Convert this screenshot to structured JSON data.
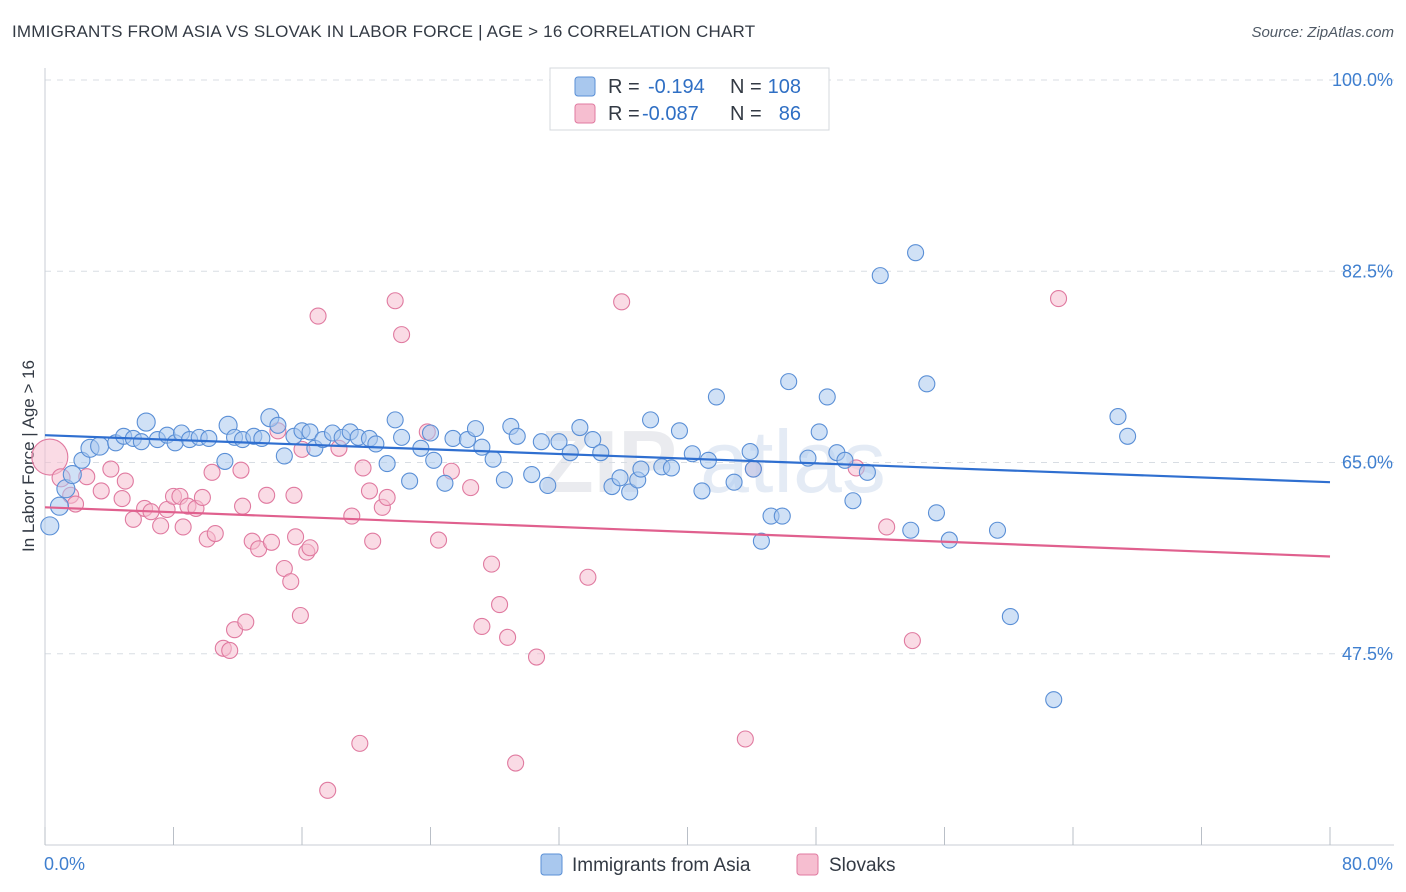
{
  "title": "IMMIGRANTS FROM ASIA VS SLOVAK IN LABOR FORCE | AGE > 16 CORRELATION CHART",
  "source": "Source: ZipAtlas.com",
  "watermark": {
    "left": "ZIP",
    "right": "atlas"
  },
  "colors": {
    "blue_fill": "#a9c8ee",
    "blue_stroke": "#5a8fd6",
    "blue_line": "#2f6fd0",
    "pink_fill": "#f6bed0",
    "pink_stroke": "#e07aa0",
    "pink_line": "#e0608e",
    "tick_text": "#3f7fcf",
    "grid": "#d8dde3"
  },
  "legend": {
    "rows": [
      {
        "r_label": "R =",
        "r_value": "-0.194",
        "n_label": "N =",
        "n_value": "108",
        "series": "blue"
      },
      {
        "r_label": "R =",
        "r_value": "-0.087",
        "n_label": "N =",
        "n_value": "86",
        "series": "pink"
      }
    ]
  },
  "bottom_legend": [
    {
      "label": "Immigrants from Asia",
      "series": "blue"
    },
    {
      "label": "Slovaks",
      "series": "pink"
    }
  ],
  "chart_data": {
    "type": "scatter",
    "title": "IMMIGRANTS FROM ASIA VS SLOVAK IN LABOR FORCE | AGE > 16 CORRELATION CHART",
    "xlabel": "",
    "ylabel": "In Labor Force | Age > 16",
    "xlim": [
      0,
      80
    ],
    "ylim": [
      30,
      100
    ],
    "x_tick_labels": [
      "0.0%",
      "80.0%"
    ],
    "y_ticks": [
      47.5,
      65.0,
      82.5,
      100.0
    ],
    "y_tick_labels": [
      "47.5%",
      "65.0%",
      "82.5%",
      "100.0%"
    ],
    "grid": "dashed horizontal",
    "legend_position": "top-center",
    "series": [
      {
        "name": "Immigrants from Asia",
        "color": "#5a8fd6",
        "trend": {
          "x": [
            0,
            80
          ],
          "y": [
            67.5,
            63.2
          ]
        },
        "points": [
          [
            0.3,
            59.2,
            9
          ],
          [
            0.9,
            61.0,
            9
          ],
          [
            1.3,
            62.6,
            9
          ],
          [
            1.7,
            63.9,
            9
          ],
          [
            2.3,
            65.2,
            8
          ],
          [
            2.8,
            66.3,
            9
          ],
          [
            3.4,
            66.5,
            9
          ],
          [
            4.4,
            66.8,
            8
          ],
          [
            4.9,
            67.4,
            8
          ],
          [
            5.5,
            67.2,
            8
          ],
          [
            6.0,
            66.9,
            8
          ],
          [
            6.3,
            68.7,
            9
          ],
          [
            7.0,
            67.1,
            8
          ],
          [
            7.6,
            67.5,
            8
          ],
          [
            8.1,
            66.8,
            8
          ],
          [
            8.5,
            67.7,
            8
          ],
          [
            9.0,
            67.1,
            8
          ],
          [
            9.6,
            67.3,
            8
          ],
          [
            10.2,
            67.2,
            8
          ],
          [
            11.2,
            65.1,
            8
          ],
          [
            11.4,
            68.4,
            9
          ],
          [
            11.8,
            67.3,
            8
          ],
          [
            12.3,
            67.1,
            8
          ],
          [
            13.0,
            67.4,
            8
          ],
          [
            13.5,
            67.2,
            8
          ],
          [
            14.0,
            69.1,
            9
          ],
          [
            14.5,
            68.4,
            8
          ],
          [
            14.9,
            65.6,
            8
          ],
          [
            15.5,
            67.4,
            8
          ],
          [
            16.0,
            67.9,
            8
          ],
          [
            16.5,
            67.8,
            8
          ],
          [
            16.8,
            66.3,
            8
          ],
          [
            17.3,
            67.1,
            8
          ],
          [
            17.9,
            67.7,
            8
          ],
          [
            18.5,
            67.3,
            8
          ],
          [
            19.0,
            67.8,
            8
          ],
          [
            19.5,
            67.3,
            8
          ],
          [
            20.2,
            67.2,
            8
          ],
          [
            20.6,
            66.7,
            8
          ],
          [
            21.3,
            64.9,
            8
          ],
          [
            21.8,
            68.9,
            8
          ],
          [
            22.2,
            67.3,
            8
          ],
          [
            22.7,
            63.3,
            8
          ],
          [
            23.4,
            66.3,
            8
          ],
          [
            24.0,
            67.7,
            8
          ],
          [
            24.2,
            65.2,
            8
          ],
          [
            24.9,
            63.1,
            8
          ],
          [
            25.4,
            67.2,
            8
          ],
          [
            26.3,
            67.1,
            8
          ],
          [
            26.8,
            68.1,
            8
          ],
          [
            27.2,
            66.4,
            8
          ],
          [
            27.9,
            65.3,
            8
          ],
          [
            28.6,
            63.4,
            8
          ],
          [
            29.0,
            68.3,
            8
          ],
          [
            29.4,
            67.4,
            8
          ],
          [
            30.3,
            63.9,
            8
          ],
          [
            30.9,
            66.9,
            8
          ],
          [
            31.3,
            62.9,
            8
          ],
          [
            32.0,
            66.9,
            8
          ],
          [
            32.7,
            65.9,
            8
          ],
          [
            33.3,
            68.2,
            8
          ],
          [
            34.1,
            67.1,
            8
          ],
          [
            34.6,
            65.9,
            8
          ],
          [
            35.3,
            62.8,
            8
          ],
          [
            35.8,
            63.6,
            8
          ],
          [
            36.4,
            62.3,
            8
          ],
          [
            36.9,
            63.4,
            8
          ],
          [
            37.1,
            64.4,
            8
          ],
          [
            37.7,
            68.9,
            8
          ],
          [
            38.4,
            64.6,
            8
          ],
          [
            39.0,
            64.5,
            8
          ],
          [
            39.5,
            67.9,
            8
          ],
          [
            40.3,
            65.8,
            8
          ],
          [
            40.9,
            62.4,
            8
          ],
          [
            41.3,
            65.2,
            8
          ],
          [
            41.8,
            71.0,
            8
          ],
          [
            42.9,
            63.2,
            8
          ],
          [
            43.9,
            66.0,
            8
          ],
          [
            44.1,
            64.4,
            8
          ],
          [
            44.6,
            57.8,
            8
          ],
          [
            45.2,
            60.1,
            8
          ],
          [
            45.9,
            60.1,
            8
          ],
          [
            46.3,
            72.4,
            8
          ],
          [
            47.5,
            65.4,
            8
          ],
          [
            48.2,
            67.8,
            8
          ],
          [
            48.7,
            71.0,
            8
          ],
          [
            49.3,
            65.9,
            8
          ],
          [
            49.8,
            65.2,
            8
          ],
          [
            50.3,
            61.5,
            8
          ],
          [
            51.2,
            64.1,
            8
          ],
          [
            52.0,
            82.1,
            8
          ],
          [
            53.9,
            58.8,
            8
          ],
          [
            54.2,
            84.2,
            8
          ],
          [
            54.9,
            72.2,
            8
          ],
          [
            55.5,
            60.4,
            8
          ],
          [
            56.3,
            57.9,
            8
          ],
          [
            59.3,
            58.8,
            8
          ],
          [
            60.1,
            50.9,
            8
          ],
          [
            62.8,
            43.3,
            8
          ],
          [
            66.8,
            69.2,
            8
          ],
          [
            67.4,
            67.4,
            8
          ]
        ]
      },
      {
        "name": "Slovaks",
        "color": "#e07aa0",
        "trend": {
          "x": [
            0,
            80
          ],
          "y": [
            60.9,
            56.4
          ]
        },
        "points": [
          [
            0.3,
            65.5,
            18
          ],
          [
            1.0,
            63.6,
            9
          ],
          [
            1.6,
            62.0,
            8
          ],
          [
            1.9,
            61.2,
            8
          ],
          [
            2.6,
            63.7,
            8
          ],
          [
            3.5,
            62.4,
            8
          ],
          [
            4.1,
            64.4,
            8
          ],
          [
            4.8,
            61.7,
            8
          ],
          [
            5.0,
            63.3,
            8
          ],
          [
            5.5,
            59.8,
            8
          ],
          [
            6.2,
            60.8,
            8
          ],
          [
            6.6,
            60.5,
            8
          ],
          [
            7.2,
            59.2,
            8
          ],
          [
            7.6,
            60.7,
            8
          ],
          [
            8.0,
            61.9,
            8
          ],
          [
            8.4,
            61.9,
            8
          ],
          [
            8.6,
            59.1,
            8
          ],
          [
            8.9,
            61.0,
            8
          ],
          [
            9.4,
            60.8,
            8
          ],
          [
            9.8,
            61.8,
            8
          ],
          [
            10.1,
            58.0,
            8
          ],
          [
            10.4,
            64.1,
            8
          ],
          [
            10.6,
            58.5,
            8
          ],
          [
            11.1,
            48.0,
            8
          ],
          [
            11.5,
            47.8,
            8
          ],
          [
            11.8,
            49.7,
            8
          ],
          [
            12.2,
            64.3,
            8
          ],
          [
            12.3,
            61.0,
            8
          ],
          [
            12.5,
            50.4,
            8
          ],
          [
            12.9,
            57.8,
            8
          ],
          [
            13.3,
            57.1,
            8
          ],
          [
            13.8,
            62.0,
            8
          ],
          [
            14.1,
            57.7,
            8
          ],
          [
            14.5,
            67.9,
            8
          ],
          [
            14.9,
            55.3,
            8
          ],
          [
            15.3,
            54.1,
            8
          ],
          [
            15.5,
            62.0,
            8
          ],
          [
            15.6,
            58.2,
            8
          ],
          [
            15.9,
            51.0,
            8
          ],
          [
            16.0,
            66.2,
            8
          ],
          [
            16.3,
            56.8,
            8
          ],
          [
            16.5,
            57.2,
            8
          ],
          [
            17.0,
            78.4,
            8
          ],
          [
            17.6,
            35.0,
            8
          ],
          [
            18.3,
            66.3,
            8
          ],
          [
            19.1,
            60.1,
            8
          ],
          [
            19.6,
            39.3,
            8
          ],
          [
            19.8,
            64.5,
            8
          ],
          [
            20.2,
            62.4,
            8
          ],
          [
            20.4,
            57.8,
            8
          ],
          [
            21.0,
            60.9,
            8
          ],
          [
            21.3,
            61.8,
            8
          ],
          [
            21.8,
            79.8,
            8
          ],
          [
            22.2,
            76.7,
            8
          ],
          [
            23.8,
            67.8,
            8
          ],
          [
            24.5,
            57.9,
            8
          ],
          [
            25.3,
            64.2,
            8
          ],
          [
            26.5,
            62.7,
            8
          ],
          [
            27.2,
            50.0,
            8
          ],
          [
            27.8,
            55.7,
            8
          ],
          [
            28.3,
            52.0,
            8
          ],
          [
            28.8,
            49.0,
            8
          ],
          [
            29.3,
            37.5,
            8
          ],
          [
            30.6,
            47.2,
            8
          ],
          [
            33.8,
            54.5,
            8
          ],
          [
            35.9,
            79.7,
            8
          ],
          [
            43.6,
            39.7,
            8
          ],
          [
            44.1,
            64.4,
            8
          ],
          [
            50.5,
            64.5,
            8
          ],
          [
            52.4,
            59.1,
            8
          ],
          [
            54.0,
            48.7,
            8
          ],
          [
            63.1,
            80.0,
            8
          ]
        ]
      }
    ]
  }
}
